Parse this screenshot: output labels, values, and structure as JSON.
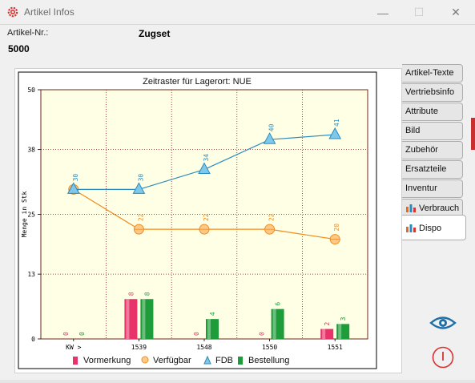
{
  "window": {
    "title": "Artikel Infos",
    "min": "—",
    "max": "☐",
    "close": "✕"
  },
  "header": {
    "artikel_nr_label": "Artikel-Nr.:",
    "artikel_name": "Zugset",
    "artikel_nr": "5000"
  },
  "tabs": [
    {
      "label": "Artikel-Texte",
      "icon": ""
    },
    {
      "label": "Vertriebsinfo",
      "icon": ""
    },
    {
      "label": "Attribute",
      "icon": ""
    },
    {
      "label": "Bild",
      "icon": ""
    },
    {
      "label": "Zubehör",
      "icon": ""
    },
    {
      "label": "Ersatzteile",
      "icon": ""
    },
    {
      "label": "Inventur",
      "icon": ""
    },
    {
      "label": "Verbrauch",
      "icon": "bar-chart-icon"
    },
    {
      "label": "Dispo",
      "icon": "bar-chart-icon",
      "active": true
    }
  ],
  "colors": {
    "vormerkung": "#e8326a",
    "verfuegbar": "#f08c1e",
    "fdb": "#2a8bbf",
    "bestellung": "#1f9c3a",
    "plot_bg": "#ffffe6",
    "grid": "#8b1a1a"
  },
  "chart_data": {
    "type": "bar",
    "title": "Zeitraster für Lagerort: NUE",
    "ylabel": "Menge in Stk",
    "xlabel": "",
    "categories": [
      "KW >",
      "1539",
      "1548",
      "1550",
      "1551"
    ],
    "ylim": [
      0,
      50
    ],
    "yticks": [
      "0",
      "13",
      "25",
      "38",
      "50"
    ],
    "grid": true,
    "legend_position": "bottom",
    "series": [
      {
        "name": "Vormerkung",
        "type": "bar",
        "values": [
          0,
          8,
          0,
          0,
          2
        ],
        "labels": [
          "0",
          "8",
          "0",
          "0",
          "2"
        ]
      },
      {
        "name": "Bestellung",
        "type": "bar",
        "values": [
          0,
          8,
          4,
          6,
          3
        ],
        "labels": [
          "0",
          "8",
          "4",
          "6",
          "3"
        ]
      },
      {
        "name": "Verfügbar",
        "type": "line",
        "values": [
          30,
          22,
          22,
          22,
          20
        ],
        "labels": [
          "",
          "22",
          "22",
          "22",
          "20"
        ]
      },
      {
        "name": "FDB",
        "type": "line",
        "values": [
          30,
          30,
          34,
          40,
          41
        ],
        "labels": [
          "30",
          "30",
          "34",
          "40",
          "41"
        ]
      }
    ],
    "legend": [
      "Vormerkung",
      "Verfügbar",
      "FDB",
      "Bestellung"
    ]
  }
}
